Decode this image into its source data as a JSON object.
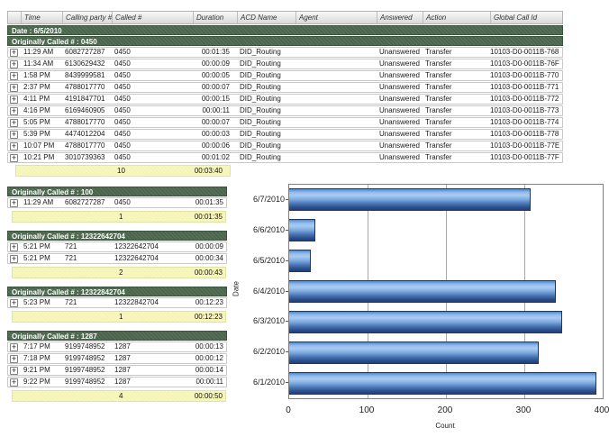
{
  "table": {
    "columns": [
      "",
      "Time",
      "Calling party #",
      "Called #",
      "Duration",
      "ACD Name",
      "Agent",
      "Answered",
      "Action",
      "Global Call Id"
    ],
    "date_header": "Date : 6/5/2010",
    "main_group": {
      "header": "Originally Called # : 0450",
      "rows": [
        {
          "time": "11:29 AM",
          "calling": "6082727287",
          "called": "0450",
          "duration": "00:01:35",
          "acd": "DID_Routing",
          "agent": "",
          "answered": "Unanswered",
          "action": "Transfer",
          "call_id": "10103-D0-0011B-768"
        },
        {
          "time": "11:34 AM",
          "calling": "6130629432",
          "called": "0450",
          "duration": "00:00:09",
          "acd": "DID_Routing",
          "agent": "",
          "answered": "Unanswered",
          "action": "Transfer",
          "call_id": "10103-D0-0011B-76F"
        },
        {
          "time": "1:58 PM",
          "calling": "8439999581",
          "called": "0450",
          "duration": "00:00:05",
          "acd": "DID_Routing",
          "agent": "",
          "answered": "Unanswered",
          "action": "Transfer",
          "call_id": "10103-D0-0011B-770"
        },
        {
          "time": "2:37 PM",
          "calling": "4788017770",
          "called": "0450",
          "duration": "00:00:07",
          "acd": "DID_Routing",
          "agent": "",
          "answered": "Unanswered",
          "action": "Transfer",
          "call_id": "10103-D0-0011B-771"
        },
        {
          "time": "4:11 PM",
          "calling": "4191847701",
          "called": "0450",
          "duration": "00:00:15",
          "acd": "DID_Routing",
          "agent": "",
          "answered": "Unanswered",
          "action": "Transfer",
          "call_id": "10103-D0-0011B-772"
        },
        {
          "time": "4:16 PM",
          "calling": "6169460905",
          "called": "0450",
          "duration": "00:00:11",
          "acd": "DID_Routing",
          "agent": "",
          "answered": "Unanswered",
          "action": "Transfer",
          "call_id": "10103-D0-0011B-773"
        },
        {
          "time": "5:05 PM",
          "calling": "4788017770",
          "called": "0450",
          "duration": "00:00:07",
          "acd": "DID_Routing",
          "agent": "",
          "answered": "Unanswered",
          "action": "Transfer",
          "call_id": "10103-D0-0011B-774"
        },
        {
          "time": "5:39 PM",
          "calling": "4474012204",
          "called": "0450",
          "duration": "00:00:03",
          "acd": "DID_Routing",
          "agent": "",
          "answered": "Unanswered",
          "action": "Transfer",
          "call_id": "10103-D0-0011B-778"
        },
        {
          "time": "10:07 PM",
          "calling": "4788017770",
          "called": "0450",
          "duration": "00:00:06",
          "acd": "DID_Routing",
          "agent": "",
          "answered": "Unanswered",
          "action": "Transfer",
          "call_id": "10103-D0-0011B-77E"
        },
        {
          "time": "10:21 PM",
          "calling": "3010739363",
          "called": "0450",
          "duration": "00:01:02",
          "acd": "DID_Routing",
          "agent": "",
          "answered": "Unanswered",
          "action": "Transfer",
          "call_id": "10103-D0-0011B-77F"
        }
      ],
      "summary_count": "10",
      "summary_duration": "00:03:40"
    },
    "sub_groups": [
      {
        "header": "Originally Called # : 100",
        "rows": [
          {
            "time": "11:29 AM",
            "calling": "6082727287",
            "called": "0450",
            "duration": "00:01:35"
          }
        ],
        "summary_count": "1",
        "summary_duration": "00:01:35"
      },
      {
        "header": "Originally Called # : 12322642704",
        "rows": [
          {
            "time": "5:21 PM",
            "calling": "721",
            "called": "12322642704",
            "duration": "00:00:09"
          },
          {
            "time": "5:21 PM",
            "calling": "721",
            "called": "12322642704",
            "duration": "00:00:34"
          }
        ],
        "summary_count": "2",
        "summary_duration": "00:00:43"
      },
      {
        "header": "Originally Called # : 12322842704",
        "rows": [
          {
            "time": "5:23 PM",
            "calling": "721",
            "called": "12322842704",
            "duration": "00:12:23"
          }
        ],
        "summary_count": "1",
        "summary_duration": "00:12:23"
      },
      {
        "header": "Originally Called # : 1287",
        "rows": [
          {
            "time": "7:17 PM",
            "calling": "9199748952",
            "called": "1287",
            "duration": "00:00:13"
          },
          {
            "time": "7:18 PM",
            "calling": "9199748952",
            "called": "1287",
            "duration": "00:00:12"
          },
          {
            "time": "9:21 PM",
            "calling": "9199748952",
            "called": "1287",
            "duration": "00:00:14"
          },
          {
            "time": "9:22 PM",
            "calling": "9199748952",
            "called": "1287",
            "duration": "00:00:11"
          }
        ],
        "summary_count": "4",
        "summary_duration": "00:00:50"
      }
    ]
  },
  "icons": {
    "expand": "+"
  },
  "colors": {
    "group_header_green": "#4e6a50",
    "summary_yellow": "#f8f8bc",
    "bar_blue": "#5088ce"
  },
  "chart_data": {
    "type": "bar",
    "orientation": "horizontal",
    "title": "",
    "categories": [
      "6/7/2010",
      "6/6/2010",
      "6/5/2010",
      "6/4/2010",
      "6/3/2010",
      "6/2/2010",
      "6/1/2010"
    ],
    "values": [
      308,
      33,
      28,
      340,
      348,
      318,
      392
    ],
    "xlabel": "Count",
    "ylabel": "Date",
    "xlim": [
      0,
      400
    ],
    "xticks": [
      "0",
      "100",
      "200",
      "300",
      "400"
    ],
    "grid": true,
    "legend": false
  }
}
